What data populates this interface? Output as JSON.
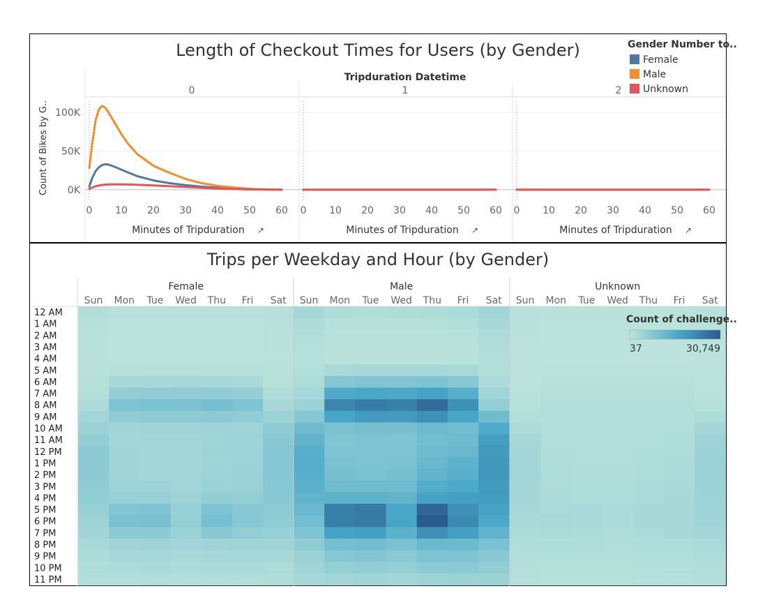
{
  "chart_data": [
    {
      "type": "line",
      "title": "Length of Checkout Times for Users (by Gender)",
      "column_header": "Tripduration Datetime",
      "panels": [
        "0",
        "1",
        "2"
      ],
      "xlabel": "Minutes of Tripduration",
      "ylabel": "Count of Bikes by G..",
      "x_ticks": [
        0,
        10,
        20,
        30,
        40,
        50,
        60
      ],
      "xlim": [
        0,
        60
      ],
      "y_ticks": [
        0,
        50000,
        100000
      ],
      "y_tick_labels": [
        "0K",
        "50K",
        "100K"
      ],
      "ylim": [
        -10000,
        120000
      ],
      "legend_title": "Gender Number to..",
      "legend_placement": "top-right",
      "x": [
        0,
        1,
        2,
        3,
        4,
        5,
        6,
        8,
        10,
        12,
        15,
        20,
        25,
        30,
        35,
        40,
        45,
        50,
        55,
        60
      ],
      "series": [
        {
          "name": "Female",
          "color": "#4e79a7",
          "panel_values": [
            [
              4000,
              16000,
              24000,
              29000,
              32000,
              33000,
              32500,
              29500,
              26000,
              22500,
              17500,
              12000,
              8500,
              6000,
              4000,
              2600,
              1500,
              800,
              300,
              0
            ],
            [
              0,
              0,
              0,
              0,
              0,
              0,
              0,
              0,
              0,
              0,
              0,
              0,
              0,
              0,
              0,
              0,
              0,
              0,
              0,
              0
            ],
            [
              0,
              0,
              0,
              0,
              0,
              0,
              0,
              0,
              0,
              0,
              0,
              0,
              0,
              0,
              0,
              0,
              0,
              0,
              0,
              0
            ]
          ]
        },
        {
          "name": "Male",
          "color": "#f28e2b",
          "panel_values": [
            [
              28000,
              62000,
              90000,
              104000,
              108500,
              106000,
              100000,
              86000,
              72000,
              60000,
              46000,
              31000,
              22000,
              14000,
              8500,
              5000,
              2800,
              1200,
              400,
              0
            ],
            [
              0,
              0,
              0,
              0,
              0,
              0,
              0,
              0,
              0,
              0,
              0,
              0,
              0,
              0,
              0,
              0,
              0,
              0,
              0,
              0
            ],
            [
              0,
              0,
              0,
              0,
              0,
              0,
              0,
              0,
              0,
              0,
              0,
              0,
              0,
              0,
              0,
              0,
              0,
              0,
              0,
              0
            ]
          ]
        },
        {
          "name": "Unknown",
          "color": "#e15759",
          "panel_values": [
            [
              1000,
              3000,
              4500,
              5500,
              6000,
              6500,
              6800,
              7000,
              7000,
              6800,
              6300,
              5500,
              4500,
              3500,
              2500,
              1600,
              900,
              400,
              100,
              0
            ],
            [
              0,
              0,
              0,
              0,
              0,
              0,
              0,
              0,
              0,
              0,
              0,
              0,
              0,
              0,
              0,
              0,
              0,
              0,
              0,
              0
            ],
            [
              0,
              0,
              0,
              0,
              0,
              0,
              0,
              0,
              0,
              0,
              0,
              0,
              0,
              0,
              0,
              0,
              0,
              0,
              0,
              0
            ]
          ]
        }
      ]
    },
    {
      "type": "heatmap",
      "title": "Trips per Weekday and Hour (by Gender)",
      "groups": [
        "Female",
        "Male",
        "Unknown"
      ],
      "days": [
        "Sun",
        "Mon",
        "Tue",
        "Wed",
        "Thu",
        "Fri",
        "Sat"
      ],
      "hours": [
        "12 AM",
        "1 AM",
        "2 AM",
        "3 AM",
        "4 AM",
        "5 AM",
        "6 AM",
        "7 AM",
        "8 AM",
        "9 AM",
        "10 AM",
        "11 AM",
        "12 PM",
        "1 PM",
        "2 PM",
        "3 PM",
        "4 PM",
        "5 PM",
        "6 PM",
        "7 PM",
        "8 PM",
        "9 PM",
        "10 PM",
        "11 PM"
      ],
      "legend_title": "Count of challenge..",
      "legend_min_label": "37",
      "legend_max_label": "30,749",
      "color_min": "#bde4dc",
      "color_mid": "#46a6c8",
      "color_max": "#2b5a8d",
      "value_range": [
        37,
        30749
      ],
      "values": {
        "Female": [
          [
            1800,
            800,
            800,
            800,
            800,
            800,
            1200
          ],
          [
            1200,
            400,
            400,
            400,
            400,
            400,
            800
          ],
          [
            900,
            200,
            200,
            200,
            200,
            200,
            600
          ],
          [
            700,
            200,
            200,
            200,
            200,
            200,
            500
          ],
          [
            600,
            300,
            300,
            300,
            300,
            300,
            400
          ],
          [
            700,
            1200,
            1200,
            1200,
            1200,
            1200,
            600
          ],
          [
            1000,
            3000,
            3200,
            3200,
            3100,
            2900,
            900
          ],
          [
            1500,
            6000,
            6500,
            6300,
            6600,
            5800,
            1600
          ],
          [
            2500,
            9000,
            9500,
            9200,
            10000,
            8800,
            3000
          ],
          [
            3800,
            6500,
            7000,
            7000,
            7200,
            6500,
            4800
          ],
          [
            5000,
            4000,
            4200,
            4100,
            4500,
            4200,
            6500
          ],
          [
            6000,
            3800,
            3900,
            3800,
            4100,
            4300,
            7500
          ],
          [
            6800,
            4000,
            3800,
            3800,
            4300,
            4500,
            8000
          ],
          [
            7000,
            4000,
            3600,
            3600,
            4200,
            4700,
            8000
          ],
          [
            6800,
            4100,
            3700,
            3500,
            4500,
            5000,
            8000
          ],
          [
            6600,
            4500,
            4300,
            3800,
            5000,
            5200,
            7800
          ],
          [
            6300,
            5500,
            5400,
            4500,
            6000,
            6000,
            7500
          ],
          [
            5500,
            8500,
            8800,
            5500,
            9000,
            7500,
            7000
          ],
          [
            4800,
            9500,
            9800,
            5800,
            10200,
            7800,
            6500
          ],
          [
            4000,
            6800,
            7000,
            5000,
            7300,
            6000,
            5500
          ],
          [
            3000,
            4200,
            4300,
            3800,
            4500,
            4200,
            4200
          ],
          [
            2400,
            3300,
            3400,
            3100,
            3500,
            3400,
            3200
          ],
          [
            2000,
            2500,
            2600,
            2400,
            2700,
            2700,
            2500
          ],
          [
            1500,
            1500,
            1600,
            1500,
            1700,
            1800,
            2000
          ]
        ],
        "Male": [
          [
            3500,
            2000,
            1800,
            2000,
            2200,
            2800,
            4000
          ],
          [
            2500,
            1000,
            1000,
            1000,
            1200,
            1500,
            3000
          ],
          [
            1800,
            600,
            600,
            600,
            700,
            900,
            2400
          ],
          [
            1300,
            500,
            500,
            500,
            500,
            600,
            1900
          ],
          [
            1000,
            600,
            600,
            600,
            600,
            600,
            1400
          ],
          [
            1400,
            3000,
            3200,
            3200,
            3200,
            3000,
            1500
          ],
          [
            2200,
            8000,
            8600,
            8400,
            8800,
            7800,
            2400
          ],
          [
            3400,
            15500,
            16500,
            16000,
            17500,
            14500,
            4000
          ],
          [
            5000,
            22500,
            24500,
            24000,
            27500,
            21000,
            6000
          ],
          [
            8000,
            17000,
            19000,
            19000,
            21000,
            17000,
            11000
          ],
          [
            11000,
            9500,
            10000,
            9800,
            11500,
            10500,
            15500
          ],
          [
            13000,
            8500,
            9000,
            8800,
            10500,
            11000,
            18000
          ],
          [
            14500,
            9000,
            9000,
            9000,
            11000,
            12000,
            19000
          ],
          [
            15000,
            9500,
            9000,
            9200,
            12000,
            13500,
            19500
          ],
          [
            14500,
            10000,
            9500,
            9800,
            13000,
            14500,
            19500
          ],
          [
            14000,
            11000,
            11000,
            11000,
            15000,
            16000,
            19000
          ],
          [
            13000,
            13500,
            13500,
            13000,
            17500,
            18000,
            18500
          ],
          [
            12000,
            24000,
            25000,
            16500,
            28500,
            21000,
            17500
          ],
          [
            10500,
            24000,
            25000,
            17000,
            30749,
            22000,
            16000
          ],
          [
            8800,
            17500,
            18000,
            14000,
            21000,
            18000,
            13000
          ],
          [
            6500,
            10500,
            10500,
            9500,
            12000,
            11500,
            9500
          ],
          [
            5200,
            8000,
            8200,
            7500,
            9000,
            9000,
            7500
          ],
          [
            4200,
            6000,
            6200,
            5800,
            7000,
            7200,
            6000
          ],
          [
            3200,
            3800,
            4000,
            3800,
            4500,
            5000,
            5000
          ]
        ],
        "Unknown": [
          [
            900,
            600,
            600,
            600,
            600,
            700,
            900
          ],
          [
            700,
            400,
            400,
            400,
            400,
            400,
            700
          ],
          [
            500,
            300,
            300,
            300,
            300,
            300,
            500
          ],
          [
            400,
            200,
            200,
            200,
            200,
            200,
            400
          ],
          [
            300,
            200,
            200,
            200,
            200,
            200,
            300
          ],
          [
            300,
            400,
            400,
            400,
            400,
            400,
            300
          ],
          [
            400,
            800,
            800,
            800,
            800,
            800,
            400
          ],
          [
            600,
            1300,
            1300,
            1300,
            1300,
            1300,
            700
          ],
          [
            900,
            1700,
            1700,
            1700,
            1700,
            1700,
            1100
          ],
          [
            1500,
            1500,
            1500,
            1500,
            1500,
            1500,
            2200
          ],
          [
            2500,
            1500,
            1400,
            1400,
            1500,
            1700,
            3500
          ],
          [
            3200,
            1700,
            1600,
            1600,
            1800,
            2000,
            4500
          ],
          [
            3600,
            1900,
            1700,
            1700,
            2000,
            2300,
            5000
          ],
          [
            3800,
            2000,
            1800,
            1800,
            2100,
            2500,
            5200
          ],
          [
            3800,
            2100,
            1900,
            1900,
            2200,
            2700,
            5200
          ],
          [
            3700,
            2200,
            2000,
            2000,
            2400,
            2900,
            5000
          ],
          [
            3500,
            2400,
            2200,
            2100,
            2600,
            3000,
            4800
          ],
          [
            3200,
            2800,
            2700,
            2400,
            3000,
            3200,
            4500
          ],
          [
            2900,
            3000,
            2900,
            2500,
            3200,
            3300,
            4200
          ],
          [
            2500,
            2600,
            2500,
            2200,
            2800,
            3000,
            3600
          ],
          [
            2000,
            2000,
            1900,
            1800,
            2100,
            2300,
            2800
          ],
          [
            1600,
            1600,
            1500,
            1500,
            1700,
            1900,
            2200
          ],
          [
            1300,
            1200,
            1200,
            1200,
            1300,
            1500,
            1800
          ],
          [
            1000,
            900,
            900,
            900,
            1000,
            1200,
            1500
          ]
        ]
      }
    }
  ]
}
